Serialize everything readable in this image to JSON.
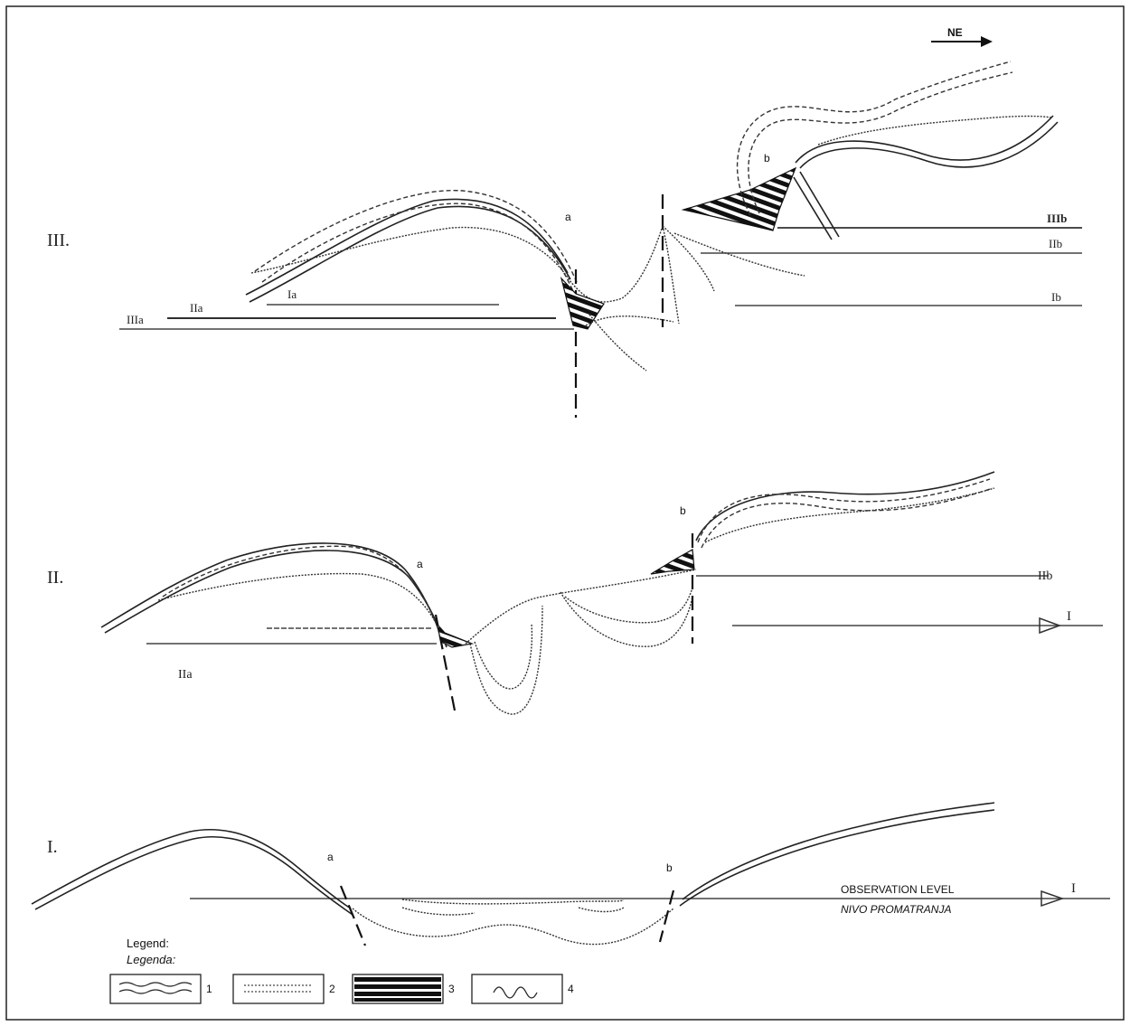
{
  "direction": "NE",
  "stage_labels": {
    "stage3": "III.",
    "stage2": "II.",
    "stage1": "I."
  },
  "block_labels": {
    "s3_a": "a",
    "s3_b": "b",
    "s2_a": "a",
    "s2_b": "b",
    "s1_a": "a",
    "s1_b": "b"
  },
  "level_labels": {
    "IIIa": "IIIa",
    "IIa_upper": "IIa",
    "Ia_upper": "Ia",
    "IIIb": "IIIb",
    "IIb_upper": "IIb",
    "Ib_upper": "Ib",
    "IIb": "IIb",
    "I_right": "I",
    "IIa": "IIa",
    "I_obs": "I"
  },
  "observation_level": {
    "en": "OBSERVATION LEVEL",
    "hr": "NIVO PROMATRANJA"
  },
  "legend": {
    "title_en": "Legend:",
    "title_hr": "Legenda:",
    "items": [
      {
        "number": "1",
        "icon": "double-wavy-line-icon"
      },
      {
        "number": "2",
        "icon": "dotted-double-line-icon"
      },
      {
        "number": "3",
        "icon": "black-striped-breccia-icon"
      },
      {
        "number": "4",
        "icon": "wavy-erosion-line-icon"
      }
    ]
  },
  "colors": {
    "ink": "#222222",
    "background": "#ffffff"
  }
}
